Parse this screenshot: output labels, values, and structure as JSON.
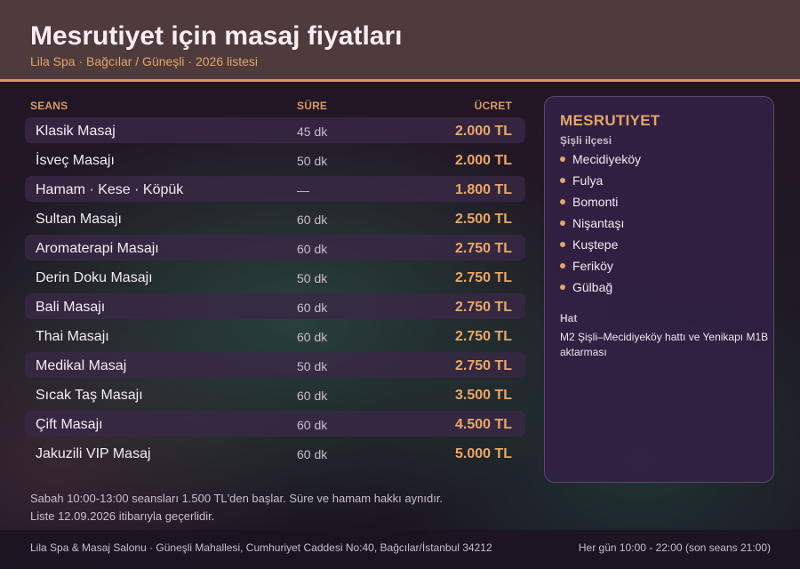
{
  "header": {
    "title": "Mesrutiyet için masaj fiyatları",
    "subtitle": "Lila Spa · Bağcılar / Güneşli · 2026 listesi"
  },
  "table": {
    "col_session": "SEANS",
    "col_duration": "SÜRE",
    "col_price": "ÜCRET",
    "rows": [
      {
        "name": "Klasik Masaj",
        "duration": "45 dk",
        "price": "2.000 TL"
      },
      {
        "name": "İsveç Masajı",
        "duration": "50 dk",
        "price": "2.000 TL"
      },
      {
        "name": "Hamam · Kese · Köpük",
        "duration": "—",
        "price": "1.800 TL"
      },
      {
        "name": "Sultan Masajı",
        "duration": "60 dk",
        "price": "2.500 TL"
      },
      {
        "name": "Aromaterapi Masajı",
        "duration": "60 dk",
        "price": "2.750 TL"
      },
      {
        "name": "Derin Doku Masajı",
        "duration": "50 dk",
        "price": "2.750 TL"
      },
      {
        "name": "Bali Masajı",
        "duration": "60 dk",
        "price": "2.750 TL"
      },
      {
        "name": "Thai Masajı",
        "duration": "60 dk",
        "price": "2.750 TL"
      },
      {
        "name": "Medikal Masaj",
        "duration": "50 dk",
        "price": "2.750 TL"
      },
      {
        "name": "Sıcak Taş Masajı",
        "duration": "60 dk",
        "price": "3.500 TL"
      },
      {
        "name": "Çift Masajı",
        "duration": "60 dk",
        "price": "4.500 TL"
      },
      {
        "name": "Jakuzili VIP Masaj",
        "duration": "60 dk",
        "price": "5.000 TL"
      }
    ]
  },
  "sidebar": {
    "title": "MESRUTIYET",
    "subtitle": "Şişli ilçesi",
    "districts": [
      "Mecidiyeköy",
      "Fulya",
      "Bomonti",
      "Nişantaşı",
      "Kuştepe",
      "Feriköy",
      "Gülbağ"
    ],
    "transit_label": "Hat",
    "transit_text": "M2 Şişli–Mecidiyeköy hattı ve Yenikapı M1B aktarması"
  },
  "notes": {
    "line1": "Sabah 10:00-13:00 seansları 1.500 TL'den başlar. Süre ve hamam hakkı aynıdır.",
    "line2": "Liste 12.09.2026 itibarıyla geçerlidir."
  },
  "footer": {
    "address": "Lila Spa & Masaj Salonu · Güneşli Mahallesi, Cumhuriyet Caddesi No:40, Bağcılar/İstanbul 34212",
    "hours": "Her gün 10:00 - 22:00 (son seans 21:00)"
  },
  "colors": {
    "accent": "#e2a56a",
    "header_bg": "#4f3a3c",
    "panel_bg": "#322044"
  }
}
